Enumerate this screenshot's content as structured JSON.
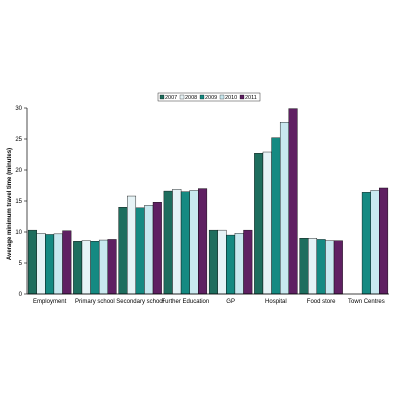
{
  "chart_data": {
    "type": "bar",
    "title": "",
    "xlabel": "",
    "ylabel": "Average minimum travel time (minutes)",
    "ylim": [
      0,
      30
    ],
    "yticks": [
      0,
      5,
      10,
      15,
      20,
      25,
      30
    ],
    "grid": false,
    "legend_position": "top-center",
    "categories": [
      "Employment",
      "Primary school",
      "Secondary school",
      "Further Education",
      "GP",
      "Hospital",
      "Food store",
      "Town Centres"
    ],
    "series": [
      {
        "name": "2007",
        "color": "#1e6e5e",
        "values": [
          10.3,
          8.5,
          14.0,
          16.6,
          10.3,
          22.7,
          9.0,
          null
        ]
      },
      {
        "name": "2008",
        "color": "#e6f3f6",
        "values": [
          9.8,
          8.6,
          15.8,
          16.9,
          10.3,
          22.9,
          9.0,
          null
        ]
      },
      {
        "name": "2009",
        "color": "#158a82",
        "values": [
          9.6,
          8.5,
          13.9,
          16.5,
          9.5,
          25.2,
          8.8,
          16.4
        ]
      },
      {
        "name": "2010",
        "color": "#c8e8ef",
        "values": [
          9.7,
          8.7,
          14.3,
          16.7,
          9.8,
          27.7,
          8.6,
          16.7
        ]
      },
      {
        "name": "2011",
        "color": "#5f2062",
        "values": [
          10.2,
          8.8,
          14.8,
          17.0,
          10.3,
          29.9,
          8.6,
          17.1
        ]
      }
    ]
  }
}
